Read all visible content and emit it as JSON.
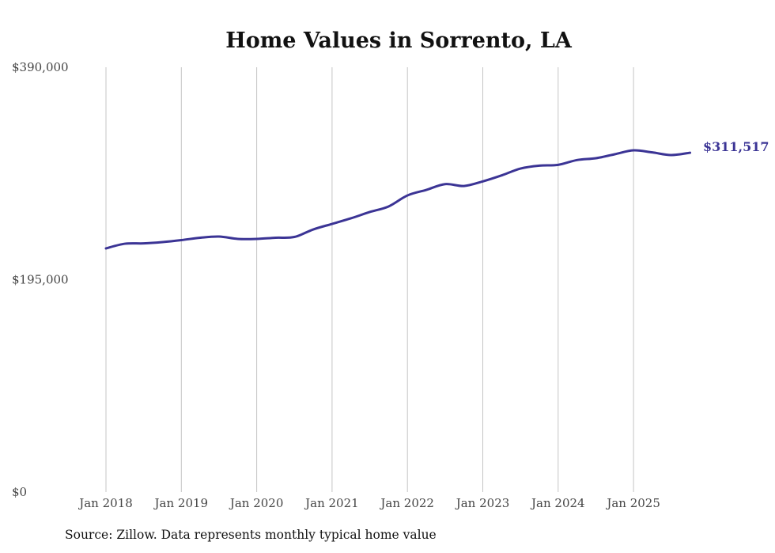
{
  "chart_data": {
    "type": "line",
    "title": "Home Values in Sorrento, LA",
    "xlabel": "",
    "ylabel": "",
    "ylim": [
      0,
      390000
    ],
    "y_ticks": [
      0,
      195000,
      390000
    ],
    "y_tick_labels": [
      "$0",
      "$195,000",
      "$390,000"
    ],
    "x_tick_labels": [
      "Jan 2018",
      "Jan 2019",
      "Jan 2020",
      "Jan 2021",
      "Jan 2022",
      "Jan 2023",
      "Jan 2024",
      "Jan 2025"
    ],
    "x_tick_years": [
      2018,
      2019,
      2020,
      2021,
      2022,
      2023,
      2024,
      2025
    ],
    "grid": "vertical",
    "line_color": "#3b3495",
    "series": [
      {
        "name": "Typical home value",
        "x": [
          2018.0,
          2018.25,
          2018.5,
          2018.75,
          2019.0,
          2019.25,
          2019.5,
          2019.75,
          2020.0,
          2020.25,
          2020.5,
          2020.75,
          2021.0,
          2021.25,
          2021.5,
          2021.75,
          2022.0,
          2022.25,
          2022.5,
          2022.75,
          2023.0,
          2023.25,
          2023.5,
          2023.75,
          2024.0,
          2024.25,
          2024.5,
          2024.75,
          2025.0,
          2025.25,
          2025.5,
          2025.75
        ],
        "values": [
          223700,
          228000,
          228300,
          229500,
          231300,
          233500,
          234600,
          232400,
          232400,
          233500,
          234200,
          241100,
          246200,
          251300,
          257100,
          262200,
          272300,
          277400,
          282700,
          281000,
          285200,
          290700,
          297000,
          299700,
          300400,
          304800,
          306500,
          310100,
          313700,
          311800,
          309400,
          311517
        ]
      }
    ],
    "end_label": "$311,517"
  },
  "source": "Source: Zillow. Data represents monthly typical home value"
}
